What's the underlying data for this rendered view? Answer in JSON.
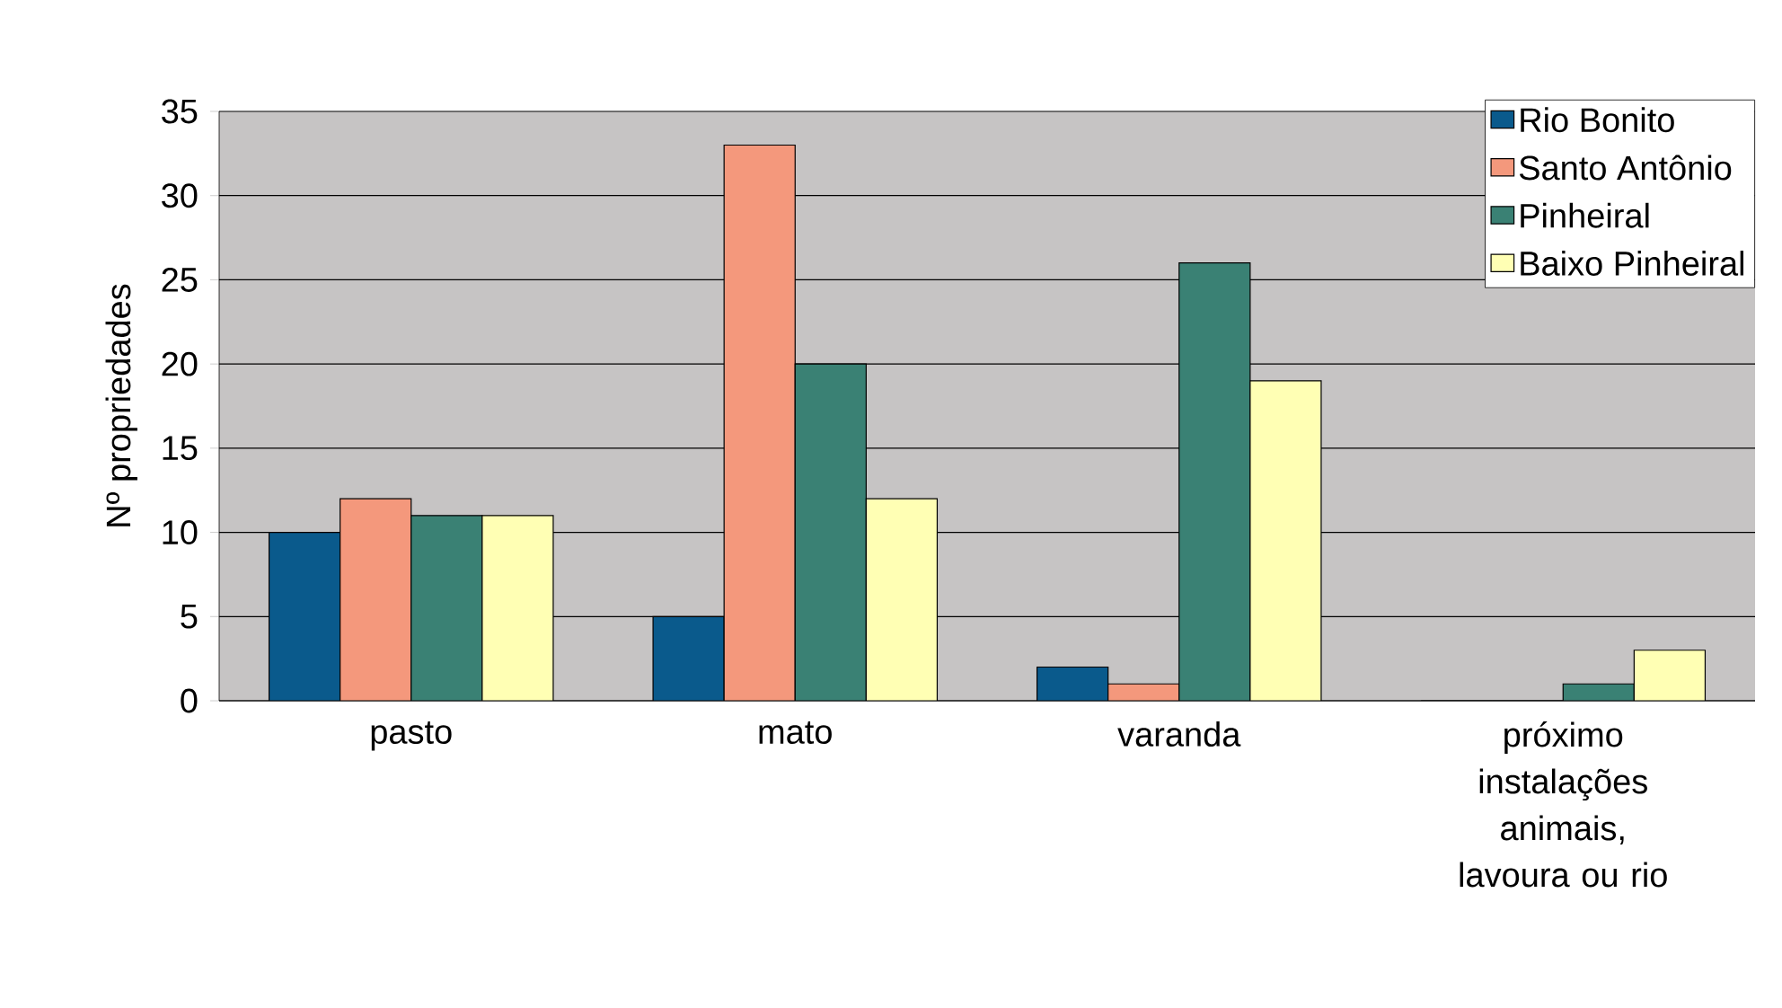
{
  "chart_data": {
    "type": "bar",
    "ylabel": "Nº propriedades",
    "categories": [
      "pasto",
      "mato",
      "varanda",
      "próximo instalações animais, lavoura ou rio"
    ],
    "series": [
      {
        "name": "Rio Bonito",
        "color": "#0a5a8c",
        "values": [
          10,
          5,
          2,
          0
        ]
      },
      {
        "name": "Santo Antônio",
        "color": "#f4987c",
        "values": [
          12,
          33,
          1,
          0
        ]
      },
      {
        "name": "Pinheiral",
        "color": "#3a8174",
        "values": [
          11,
          20,
          26,
          1
        ]
      },
      {
        "name": "Baixo Pinheiral",
        "color": "#ffffb4",
        "values": [
          11,
          12,
          19,
          3
        ]
      }
    ],
    "ylim": [
      0,
      35
    ],
    "yticks": [
      0,
      5,
      10,
      15,
      20,
      25,
      30,
      35
    ],
    "grid": "y",
    "legend": "top right"
  }
}
